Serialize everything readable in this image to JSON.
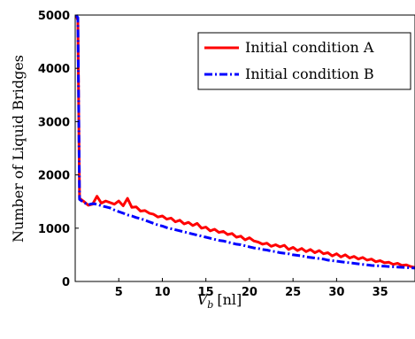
{
  "chart_data": {
    "type": "line",
    "title": "",
    "xlabel_main": "V",
    "xlabel_sub": "b",
    "xlabel_unit": "[nl]",
    "ylabel": "Number of Liquid Bridges",
    "xlim": [
      0,
      39
    ],
    "ylim": [
      0,
      5000
    ],
    "xticks": [
      5,
      10,
      15,
      20,
      25,
      30,
      35
    ],
    "yticks": [
      0,
      1000,
      2000,
      3000,
      4000,
      5000
    ],
    "grid": false,
    "legend_position": "top-right",
    "series": [
      {
        "name": "Initial condition A",
        "color": "#ff0000",
        "style": "solid",
        "x": [
          0.1,
          0.3,
          0.5,
          1.0,
          1.5,
          2.0,
          2.5,
          3.0,
          3.5,
          4.0,
          4.5,
          5.0,
          5.5,
          6.0,
          6.5,
          7.0,
          7.5,
          8.0,
          8.5,
          9.0,
          9.5,
          10.0,
          10.5,
          11.0,
          11.5,
          12.0,
          12.5,
          13.0,
          13.5,
          14.0,
          14.5,
          15.0,
          15.5,
          16.0,
          16.5,
          17.0,
          17.5,
          18.0,
          18.5,
          19.0,
          19.5,
          20.0,
          20.5,
          21.0,
          21.5,
          22.0,
          22.5,
          23.0,
          23.5,
          24.0,
          24.5,
          25.0,
          25.5,
          26.0,
          26.5,
          27.0,
          27.5,
          28.0,
          28.5,
          29.0,
          29.5,
          30.0,
          30.5,
          31.0,
          31.5,
          32.0,
          32.5,
          33.0,
          33.5,
          34.0,
          34.5,
          35.0,
          35.5,
          36.0,
          36.5,
          37.0,
          37.5,
          38.0,
          38.5,
          39.0
        ],
        "values": [
          5000,
          4900,
          1560,
          1500,
          1430,
          1450,
          1600,
          1470,
          1510,
          1480,
          1450,
          1510,
          1420,
          1560,
          1390,
          1400,
          1320,
          1330,
          1280,
          1260,
          1210,
          1230,
          1170,
          1190,
          1120,
          1150,
          1080,
          1110,
          1050,
          1090,
          1000,
          1020,
          950,
          980,
          920,
          940,
          880,
          900,
          830,
          850,
          780,
          820,
          760,
          740,
          700,
          720,
          660,
          690,
          650,
          680,
          600,
          640,
          580,
          620,
          560,
          600,
          540,
          580,
          520,
          540,
          480,
          520,
          460,
          500,
          440,
          470,
          420,
          450,
          400,
          420,
          370,
          390,
          350,
          360,
          320,
          340,
          300,
          310,
          280,
          260
        ]
      },
      {
        "name": "Initial condition B",
        "color": "#0000ff",
        "style": "dashdot",
        "x": [
          0.1,
          0.3,
          0.5,
          1.0,
          1.5,
          2.0,
          2.5,
          3.0,
          3.5,
          4.0,
          4.5,
          5.0,
          5.5,
          6.0,
          6.5,
          7.0,
          7.5,
          8.0,
          8.5,
          9.0,
          9.5,
          10.0,
          10.5,
          11.0,
          11.5,
          12.0,
          12.5,
          13.0,
          13.5,
          14.0,
          14.5,
          15.0,
          15.5,
          16.0,
          16.5,
          17.0,
          17.5,
          18.0,
          18.5,
          19.0,
          19.5,
          20.0,
          20.5,
          21.0,
          21.5,
          22.0,
          22.5,
          23.0,
          23.5,
          24.0,
          24.5,
          25.0,
          25.5,
          26.0,
          26.5,
          27.0,
          27.5,
          28.0,
          28.5,
          29.0,
          29.5,
          30.0,
          30.5,
          31.0,
          31.5,
          32.0,
          32.5,
          33.0,
          33.5,
          34.0,
          34.5,
          35.0,
          35.5,
          36.0,
          36.5,
          37.0,
          37.5,
          38.0,
          38.5,
          39.0
        ],
        "values": [
          5000,
          4950,
          1540,
          1480,
          1440,
          1460,
          1450,
          1420,
          1400,
          1380,
          1340,
          1310,
          1280,
          1250,
          1230,
          1200,
          1180,
          1150,
          1120,
          1090,
          1060,
          1040,
          1010,
          990,
          970,
          950,
          930,
          910,
          890,
          870,
          850,
          830,
          810,
          790,
          770,
          760,
          740,
          720,
          700,
          690,
          670,
          650,
          630,
          620,
          600,
          590,
          570,
          560,
          540,
          530,
          520,
          500,
          490,
          480,
          460,
          450,
          440,
          430,
          420,
          400,
          390,
          380,
          370,
          360,
          350,
          340,
          330,
          320,
          310,
          300,
          295,
          290,
          285,
          280,
          275,
          270,
          265,
          260,
          255,
          250
        ]
      }
    ]
  }
}
